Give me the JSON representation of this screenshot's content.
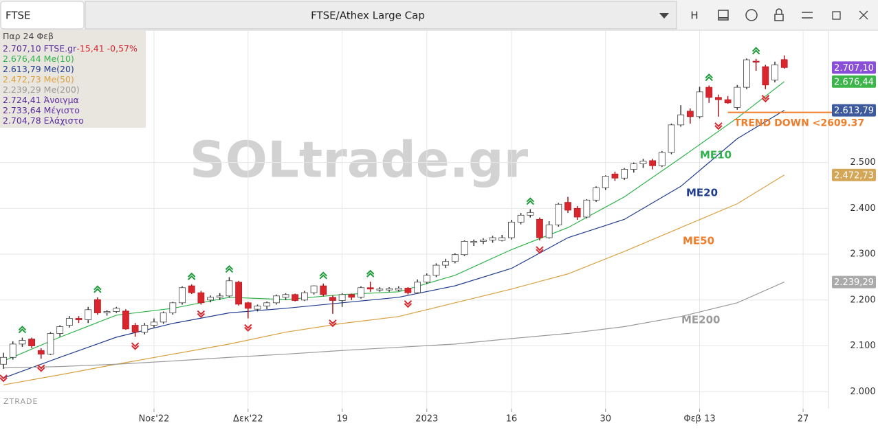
{
  "toolbar": {
    "symbol": "FTSE",
    "title": "FTSE/Athex Large Cap",
    "button": "H"
  },
  "chart_data": {
    "type": "candlestick",
    "watermark": "SOLtrade.gr",
    "brand": "ZTRADE",
    "legend_date": "Παρ 24 Φεβ",
    "ylim": [
      1963,
      2787
    ],
    "yticks": [
      {
        "value": 2000,
        "label": "2.000"
      },
      {
        "value": 2100,
        "label": "2.100"
      },
      {
        "value": 2200,
        "label": "2.200"
      },
      {
        "value": 2300,
        "label": "2.300"
      },
      {
        "value": 2400,
        "label": "2.400"
      },
      {
        "value": 2500,
        "label": "2.500"
      }
    ],
    "xlim": [
      -0.37,
      87.7
    ],
    "xticks": [
      {
        "value": 16,
        "label": "Νοε'22"
      },
      {
        "value": 26,
        "label": "Δεκ'22"
      },
      {
        "value": 36,
        "label": "19"
      },
      {
        "value": 45,
        "label": "2023"
      },
      {
        "value": 54,
        "label": "16"
      },
      {
        "value": 64,
        "label": "30"
      },
      {
        "value": 74,
        "label": "Φεβ 13"
      },
      {
        "value": 85,
        "label": "27"
      }
    ],
    "grid": true,
    "candles": {
      "name": "FTSE.gr",
      "up_color": "#ffffff",
      "down_color": "#d9262e",
      "badge_color": "#8a4fd8",
      "last_label": "2.707,10",
      "change": "-15,41",
      "change_pct": "-0,57%",
      "open": [
        2060,
        2075,
        2104,
        2115,
        2090,
        2082,
        2127,
        2145,
        2160,
        2157,
        2201,
        2172,
        2175,
        2176,
        2145,
        2130,
        2145,
        2152,
        2172,
        2194,
        2231,
        2216,
        2200,
        2206,
        2209,
        2239,
        2194,
        2180,
        2187,
        2194,
        2206,
        2212,
        2200,
        2216,
        2231,
        2206,
        2199,
        2212,
        2206,
        2227,
        2222,
        2222,
        2222,
        2226,
        2216,
        2239,
        2254,
        2276,
        2284,
        2299,
        2326,
        2328,
        2331,
        2330,
        2336,
        2370,
        2385,
        2376,
        2336,
        2364,
        2413,
        2400,
        2381,
        2418,
        2445,
        2475,
        2466,
        2485,
        2497,
        2504,
        2493,
        2522,
        2582,
        2612,
        2600,
        2664,
        2642,
        2637,
        2620,
        2664,
        2721,
        2709,
        2680,
        2724.41
      ],
      "high": [
        2085,
        2110,
        2118,
        2118,
        2095,
        2130,
        2145,
        2165,
        2165,
        2185,
        2206,
        2178,
        2185,
        2180,
        2150,
        2150,
        2160,
        2175,
        2196,
        2230,
        2234,
        2220,
        2210,
        2215,
        2250,
        2242,
        2196,
        2190,
        2197,
        2212,
        2215,
        2214,
        2220,
        2232,
        2236,
        2210,
        2215,
        2214,
        2230,
        2240,
        2228,
        2228,
        2230,
        2228,
        2245,
        2258,
        2280,
        2290,
        2302,
        2330,
        2332,
        2335,
        2340,
        2342,
        2375,
        2390,
        2398,
        2380,
        2372,
        2412,
        2425,
        2405,
        2420,
        2448,
        2472,
        2480,
        2488,
        2500,
        2508,
        2508,
        2525,
        2585,
        2625,
        2618,
        2665,
        2668,
        2648,
        2645,
        2669,
        2727,
        2726,
        2713,
        2720,
        2733.64
      ],
      "low": [
        2050,
        2070,
        2098,
        2095,
        2072,
        2080,
        2120,
        2140,
        2150,
        2150,
        2168,
        2166,
        2172,
        2135,
        2120,
        2125,
        2140,
        2148,
        2168,
        2190,
        2213,
        2190,
        2195,
        2200,
        2205,
        2188,
        2160,
        2175,
        2180,
        2190,
        2200,
        2197,
        2198,
        2212,
        2208,
        2170,
        2185,
        2200,
        2203,
        2218,
        2218,
        2218,
        2219,
        2212,
        2214,
        2235,
        2250,
        2270,
        2280,
        2296,
        2318,
        2322,
        2325,
        2328,
        2332,
        2365,
        2380,
        2330,
        2334,
        2360,
        2390,
        2375,
        2378,
        2414,
        2440,
        2460,
        2462,
        2478,
        2488,
        2485,
        2490,
        2518,
        2578,
        2585,
        2596,
        2630,
        2600,
        2628,
        2615,
        2660,
        2700,
        2660,
        2675,
        2704.78
      ],
      "close": [
        2075,
        2104,
        2112,
        2100,
        2082,
        2127,
        2142,
        2160,
        2157,
        2179,
        2172,
        2175,
        2182,
        2137,
        2130,
        2145,
        2152,
        2172,
        2194,
        2227,
        2216,
        2194,
        2206,
        2209,
        2242,
        2191,
        2182,
        2187,
        2194,
        2209,
        2212,
        2199,
        2216,
        2231,
        2212,
        2199,
        2212,
        2206,
        2227,
        2224,
        2224,
        2225,
        2226,
        2216,
        2239,
        2254,
        2276,
        2284,
        2299,
        2328,
        2328,
        2331,
        2336,
        2336,
        2370,
        2385,
        2391,
        2336,
        2364,
        2409,
        2396,
        2381,
        2418,
        2445,
        2470,
        2466,
        2485,
        2497,
        2503,
        2493,
        2522,
        2582,
        2604,
        2600,
        2654,
        2642,
        2637,
        2630,
        2664,
        2724,
        2719,
        2669,
        2713,
        2707.1
      ]
    },
    "stats": [
      {
        "value": "2.724,41",
        "name": "Άνοιγμα"
      },
      {
        "value": "2.733,64",
        "name": "Μέγιστο"
      },
      {
        "value": "2.704,78",
        "name": "Ελάχιστο"
      }
    ],
    "series": [
      {
        "name": "Me(10)",
        "chart_label": "ME10",
        "color": "#2db34a",
        "badge_color": "#3cb54a",
        "last_label": "2.676,44",
        "x": [
          0,
          6,
          12,
          18,
          24,
          30,
          36,
          42,
          48,
          54,
          60,
          66,
          72,
          78,
          83
        ],
        "values": [
          2067,
          2119,
          2167,
          2182,
          2206,
          2201,
          2212,
          2218,
          2254,
          2310,
          2358,
          2425,
          2510,
          2597,
          2676.44
        ]
      },
      {
        "name": "Me(20)",
        "chart_label": "ME20",
        "color": "#1f3c8f",
        "badge_color": "#3d5a9e",
        "last_label": "2.613,79",
        "x": [
          0,
          6,
          12,
          18,
          24,
          30,
          36,
          42,
          48,
          54,
          60,
          66,
          72,
          78,
          83
        ],
        "values": [
          2030,
          2075,
          2119,
          2149,
          2172,
          2182,
          2194,
          2206,
          2231,
          2269,
          2336,
          2376,
          2448,
          2552,
          2613.79
        ]
      },
      {
        "name": "Me(50)",
        "chart_label": "ME50",
        "color": "#d9a040",
        "badge_color": "#d4a657",
        "last_label": "2.472,73",
        "x": [
          0,
          6,
          12,
          18,
          24,
          30,
          36,
          42,
          48,
          54,
          60,
          66,
          72,
          78,
          83
        ],
        "values": [
          2015,
          2037,
          2060,
          2082,
          2104,
          2130,
          2149,
          2164,
          2194,
          2224,
          2257,
          2306,
          2358,
          2410,
          2472.73
        ]
      },
      {
        "name": "Me(200)",
        "chart_label": "ME200",
        "color": "#9a9a9a",
        "badge_color": "#aaaaaa",
        "last_label": "2.239,29",
        "x": [
          0,
          6,
          12,
          18,
          24,
          30,
          36,
          42,
          48,
          54,
          60,
          66,
          72,
          78,
          83
        ],
        "values": [
          2052,
          2055,
          2060,
          2067,
          2075,
          2082,
          2090,
          2097,
          2104,
          2116,
          2127,
          2142,
          2164,
          2194,
          2239.29
        ]
      }
    ],
    "signals": {
      "up": [
        2,
        10,
        20,
        24,
        34,
        39,
        56,
        75,
        80
      ],
      "down": [
        0,
        4,
        14,
        21,
        26,
        35,
        43,
        57,
        76,
        81
      ]
    },
    "trend": {
      "text": "TREND DOWN <2609.37",
      "value": 2609.37,
      "color": "#f07d2a"
    }
  }
}
